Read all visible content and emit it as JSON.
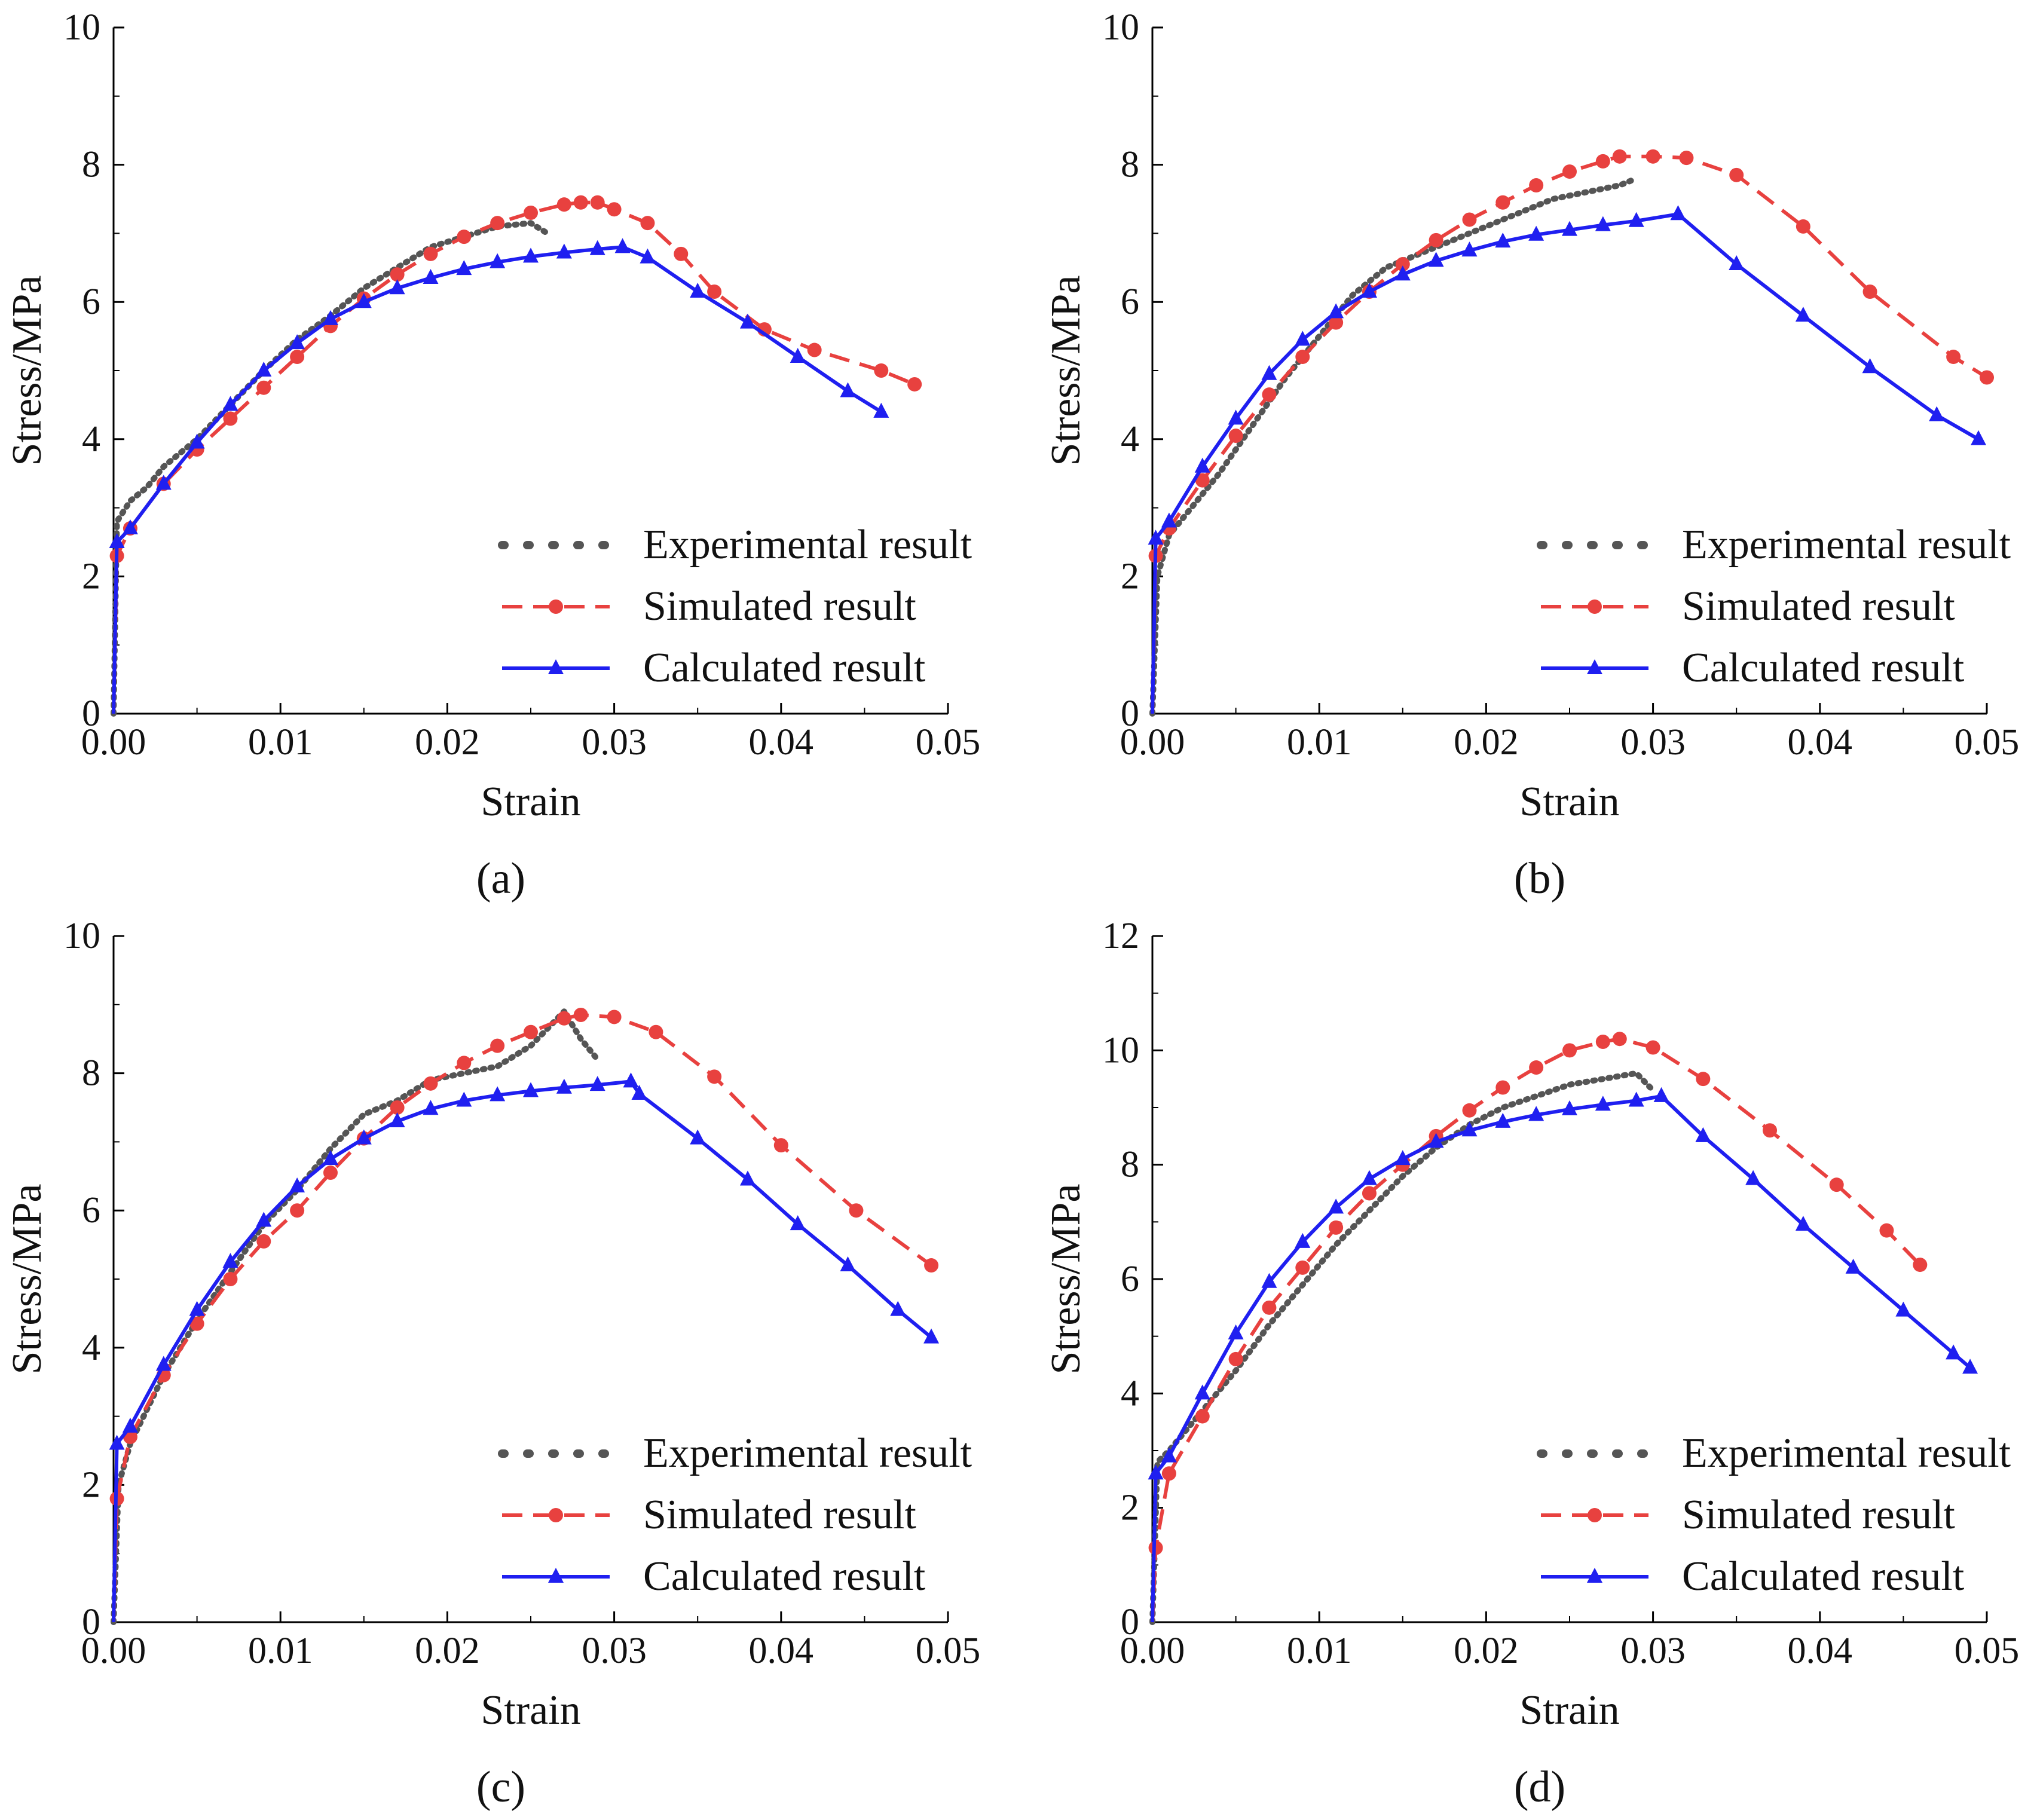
{
  "chart_data": [
    {
      "panel": "a",
      "type": "line",
      "caption": "(a)",
      "xlabel": "Strain",
      "ylabel": "Stress/MPa",
      "xlim": [
        0,
        0.05
      ],
      "ylim": [
        0,
        10
      ],
      "xticks": [
        "0.00",
        "0.01",
        "0.02",
        "0.03",
        "0.04",
        "0.05"
      ],
      "yticks": [
        "0",
        "2",
        "4",
        "6",
        "8",
        "10"
      ],
      "legend_position": "lower-right",
      "series": [
        {
          "name": "Experimental result",
          "color": "#555555",
          "style": "dotted",
          "x": [
            0,
            0.0002,
            0.001,
            0.002,
            0.003,
            0.005,
            0.007,
            0.009,
            0.011,
            0.013,
            0.015,
            0.017,
            0.019,
            0.021,
            0.023,
            0.025,
            0.026
          ],
          "y": [
            0,
            2.8,
            3.1,
            3.3,
            3.6,
            4.0,
            4.5,
            5.0,
            5.45,
            5.8,
            6.2,
            6.5,
            6.8,
            6.95,
            7.1,
            7.15,
            7.0
          ]
        },
        {
          "name": "Simulated result",
          "color": "#e8413f",
          "style": "dashed",
          "x": [
            0,
            0.0002,
            0.001,
            0.003,
            0.005,
            0.007,
            0.009,
            0.011,
            0.013,
            0.015,
            0.017,
            0.019,
            0.021,
            0.023,
            0.025,
            0.027,
            0.028,
            0.029,
            0.03,
            0.032,
            0.034,
            0.036,
            0.039,
            0.042,
            0.046,
            0.048
          ],
          "y": [
            0,
            2.3,
            2.7,
            3.35,
            3.85,
            4.3,
            4.75,
            5.2,
            5.65,
            6.05,
            6.4,
            6.7,
            6.95,
            7.15,
            7.3,
            7.42,
            7.45,
            7.45,
            7.35,
            7.15,
            6.7,
            6.15,
            5.6,
            5.3,
            5.0,
            4.8
          ]
        },
        {
          "name": "Calculated result",
          "color": "#1f1ff0",
          "style": "solid",
          "x": [
            0,
            0.0002,
            0.001,
            0.003,
            0.005,
            0.007,
            0.009,
            0.011,
            0.013,
            0.015,
            0.017,
            0.019,
            0.021,
            0.023,
            0.025,
            0.027,
            0.029,
            0.0305,
            0.032,
            0.035,
            0.038,
            0.041,
            0.044,
            0.046
          ],
          "y": [
            0,
            2.5,
            2.7,
            3.35,
            3.95,
            4.5,
            5.0,
            5.4,
            5.75,
            6.0,
            6.2,
            6.35,
            6.48,
            6.58,
            6.66,
            6.72,
            6.77,
            6.8,
            6.65,
            6.15,
            5.7,
            5.2,
            4.7,
            4.4
          ]
        }
      ]
    },
    {
      "panel": "b",
      "type": "line",
      "caption": "(b)",
      "xlabel": "Strain",
      "ylabel": "Stress/MPa",
      "xlim": [
        0,
        0.05
      ],
      "ylim": [
        0,
        10
      ],
      "xticks": [
        "0.00",
        "0.01",
        "0.02",
        "0.03",
        "0.04",
        "0.05"
      ],
      "yticks": [
        "0",
        "2",
        "4",
        "6",
        "8",
        "10"
      ],
      "legend_position": "lower-right",
      "series": [
        {
          "name": "Experimental result",
          "color": "#555555",
          "style": "dotted",
          "x": [
            0,
            0.0003,
            0.001,
            0.002,
            0.004,
            0.006,
            0.008,
            0.01,
            0.012,
            0.014,
            0.016,
            0.018,
            0.02,
            0.022,
            0.024,
            0.026,
            0.028,
            0.029
          ],
          "y": [
            0,
            2.0,
            2.6,
            2.9,
            3.5,
            4.2,
            4.9,
            5.5,
            6.1,
            6.5,
            6.7,
            6.9,
            7.1,
            7.3,
            7.5,
            7.6,
            7.7,
            7.8
          ]
        },
        {
          "name": "Simulated result",
          "color": "#e8413f",
          "style": "dashed",
          "x": [
            0,
            0.0002,
            0.001,
            0.003,
            0.005,
            0.007,
            0.009,
            0.011,
            0.013,
            0.015,
            0.017,
            0.019,
            0.021,
            0.023,
            0.025,
            0.027,
            0.028,
            0.03,
            0.032,
            0.035,
            0.039,
            0.043,
            0.048,
            0.05
          ],
          "y": [
            0,
            2.3,
            2.7,
            3.4,
            4.05,
            4.65,
            5.2,
            5.7,
            6.15,
            6.55,
            6.9,
            7.2,
            7.45,
            7.7,
            7.9,
            8.05,
            8.12,
            8.12,
            8.1,
            7.85,
            7.1,
            6.15,
            5.2,
            4.9
          ]
        },
        {
          "name": "Calculated result",
          "color": "#1f1ff0",
          "style": "solid",
          "x": [
            0,
            0.0002,
            0.001,
            0.003,
            0.005,
            0.007,
            0.009,
            0.011,
            0.013,
            0.015,
            0.017,
            0.019,
            0.021,
            0.023,
            0.025,
            0.027,
            0.029,
            0.0315,
            0.035,
            0.039,
            0.043,
            0.047,
            0.0495
          ],
          "y": [
            0,
            2.55,
            2.8,
            3.6,
            4.3,
            4.95,
            5.45,
            5.85,
            6.15,
            6.4,
            6.6,
            6.75,
            6.88,
            6.98,
            7.05,
            7.12,
            7.18,
            7.28,
            6.55,
            5.8,
            5.05,
            4.35,
            4.0
          ]
        }
      ]
    },
    {
      "panel": "c",
      "type": "line",
      "caption": "(c)",
      "xlabel": "Strain",
      "ylabel": "Stress/MPa",
      "xlim": [
        0,
        0.05
      ],
      "ylim": [
        0,
        10
      ],
      "xticks": [
        "0.00",
        "0.01",
        "0.02",
        "0.03",
        "0.04",
        "0.05"
      ],
      "yticks": [
        "0",
        "2",
        "4",
        "6",
        "8",
        "10"
      ],
      "legend_position": "lower-right",
      "series": [
        {
          "name": "Experimental result",
          "color": "#555555",
          "style": "dotted",
          "x": [
            0,
            0.0003,
            0.001,
            0.003,
            0.005,
            0.007,
            0.009,
            0.011,
            0.013,
            0.015,
            0.017,
            0.019,
            0.021,
            0.023,
            0.025,
            0.027,
            0.028,
            0.029
          ],
          "y": [
            0,
            2.0,
            2.6,
            3.6,
            4.4,
            5.1,
            5.8,
            6.3,
            6.9,
            7.4,
            7.6,
            7.9,
            8.0,
            8.1,
            8.4,
            8.9,
            8.5,
            8.2
          ]
        },
        {
          "name": "Simulated result",
          "color": "#e8413f",
          "style": "dashed",
          "x": [
            0,
            0.0002,
            0.001,
            0.003,
            0.005,
            0.007,
            0.009,
            0.011,
            0.013,
            0.015,
            0.017,
            0.019,
            0.021,
            0.023,
            0.025,
            0.027,
            0.028,
            0.03,
            0.0325,
            0.036,
            0.04,
            0.0445,
            0.049
          ],
          "y": [
            0,
            1.8,
            2.7,
            3.6,
            4.35,
            5.0,
            5.55,
            6.0,
            6.55,
            7.05,
            7.5,
            7.85,
            8.15,
            8.4,
            8.6,
            8.8,
            8.85,
            8.82,
            8.6,
            7.95,
            6.95,
            6.0,
            5.2
          ]
        },
        {
          "name": "Calculated result",
          "color": "#1f1ff0",
          "style": "solid",
          "x": [
            0,
            0.0002,
            0.001,
            0.003,
            0.005,
            0.007,
            0.009,
            0.011,
            0.013,
            0.015,
            0.017,
            0.019,
            0.021,
            0.023,
            0.025,
            0.027,
            0.029,
            0.031,
            0.0315,
            0.035,
            0.038,
            0.041,
            0.044,
            0.047,
            0.049
          ],
          "y": [
            0,
            2.6,
            2.85,
            3.75,
            4.55,
            5.25,
            5.85,
            6.35,
            6.75,
            7.05,
            7.3,
            7.48,
            7.6,
            7.68,
            7.74,
            7.79,
            7.83,
            7.88,
            7.7,
            7.05,
            6.45,
            5.8,
            5.2,
            4.55,
            4.15
          ]
        }
      ]
    },
    {
      "panel": "d",
      "type": "line",
      "caption": "(d)",
      "xlabel": "Strain",
      "ylabel": "Stress/MPa",
      "xlim": [
        0,
        0.05
      ],
      "ylim": [
        0,
        12
      ],
      "xticks": [
        "0.00",
        "0.01",
        "0.02",
        "0.03",
        "0.04",
        "0.05"
      ],
      "yticks": [
        "0",
        "2",
        "4",
        "6",
        "8",
        "10",
        "12"
      ],
      "legend_position": "lower-right",
      "series": [
        {
          "name": "Experimental result",
          "color": "#555555",
          "style": "dotted",
          "x": [
            0,
            0.0003,
            0.001,
            0.003,
            0.005,
            0.007,
            0.009,
            0.011,
            0.013,
            0.015,
            0.017,
            0.019,
            0.021,
            0.023,
            0.025,
            0.027,
            0.029,
            0.03
          ],
          "y": [
            0,
            2.8,
            3.0,
            3.7,
            4.4,
            5.2,
            5.9,
            6.6,
            7.2,
            7.8,
            8.3,
            8.7,
            9.0,
            9.2,
            9.4,
            9.5,
            9.6,
            9.3
          ]
        },
        {
          "name": "Simulated result",
          "color": "#e8413f",
          "style": "dashed",
          "x": [
            0,
            0.0002,
            0.001,
            0.003,
            0.005,
            0.007,
            0.009,
            0.011,
            0.013,
            0.015,
            0.017,
            0.019,
            0.021,
            0.023,
            0.025,
            0.027,
            0.028,
            0.03,
            0.033,
            0.037,
            0.041,
            0.044,
            0.046
          ],
          "y": [
            0,
            1.3,
            2.6,
            3.6,
            4.6,
            5.5,
            6.2,
            6.9,
            7.5,
            8.0,
            8.5,
            8.95,
            9.35,
            9.7,
            10.0,
            10.15,
            10.2,
            10.05,
            9.5,
            8.6,
            7.65,
            6.85,
            6.25
          ]
        },
        {
          "name": "Calculated result",
          "color": "#1f1ff0",
          "style": "solid",
          "x": [
            0,
            0.0002,
            0.001,
            0.003,
            0.005,
            0.007,
            0.009,
            0.011,
            0.013,
            0.015,
            0.017,
            0.019,
            0.021,
            0.023,
            0.025,
            0.027,
            0.029,
            0.0305,
            0.033,
            0.036,
            0.039,
            0.042,
            0.045,
            0.048,
            0.049
          ],
          "y": [
            0,
            2.6,
            2.9,
            4.0,
            5.05,
            5.95,
            6.65,
            7.25,
            7.75,
            8.1,
            8.4,
            8.6,
            8.75,
            8.87,
            8.97,
            9.05,
            9.12,
            9.2,
            8.5,
            7.75,
            6.95,
            6.2,
            5.45,
            4.7,
            4.45
          ]
        }
      ]
    }
  ]
}
